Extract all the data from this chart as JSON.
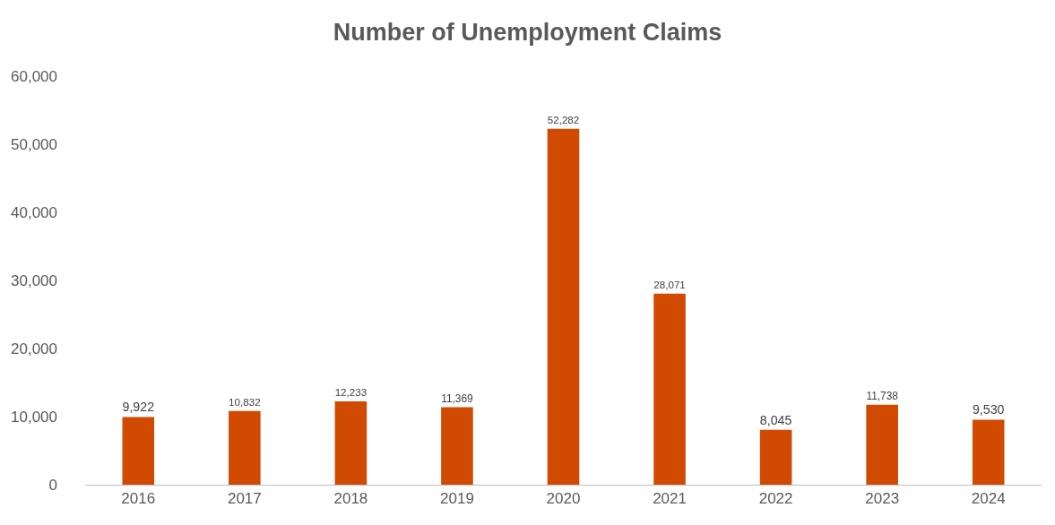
{
  "chart_data": {
    "type": "bar",
    "title": "Number of Unemployment Claims",
    "categories": [
      "2016",
      "2017",
      "2018",
      "2019",
      "2020",
      "2021",
      "2022",
      "2023",
      "2024"
    ],
    "values": [
      9922,
      10832,
      12233,
      11369,
      52282,
      28071,
      8045,
      11738,
      9530
    ],
    "value_labels": [
      "9,922",
      "10,832",
      "12,233",
      "11,369",
      "52,282",
      "28,071",
      "8,045",
      "11,738",
      "9,530"
    ],
    "color": "#d04a02",
    "ylim": [
      0,
      60000
    ],
    "yticks": [
      0,
      {
        "value": 10000,
        "label": "10,000"
      },
      {
        "value": 20000,
        "label": "20,000"
      },
      {
        "value": 30000,
        "label": "30,000"
      },
      {
        "value": 40000,
        "label": "40,000"
      },
      {
        "value": 50000,
        "label": "50,000"
      },
      {
        "value": 60000,
        "label": "60,000"
      }
    ],
    "grid": false,
    "legend": false
  }
}
